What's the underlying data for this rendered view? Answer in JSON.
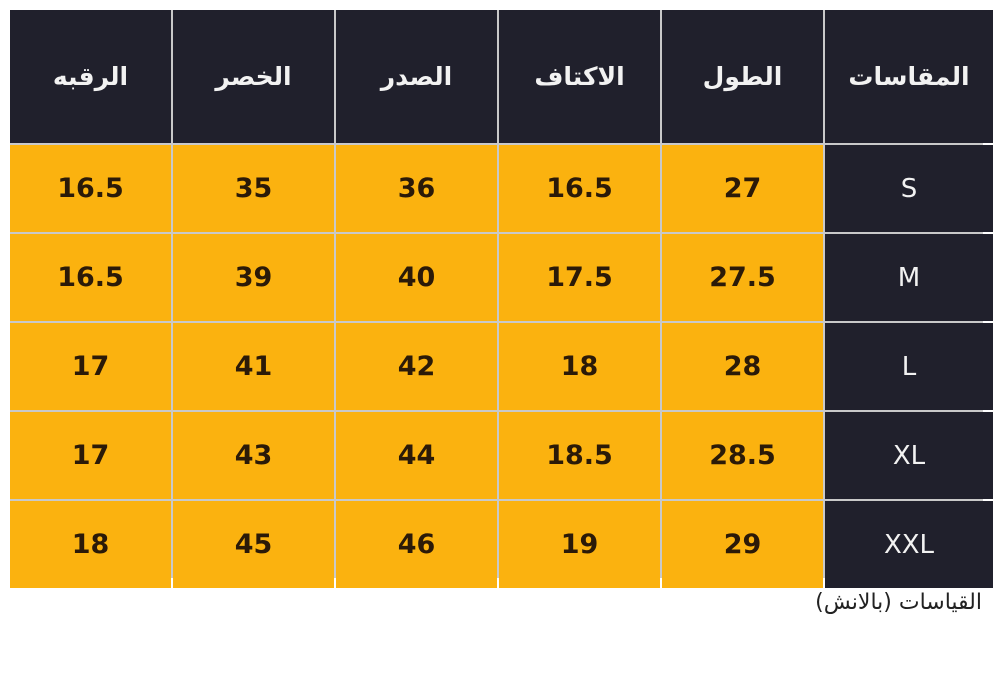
{
  "table": {
    "headers_rtl": [
      "المقاسات",
      "الطول",
      "الاكتاف",
      "الصدر",
      "الخصر",
      "الرقبه"
    ],
    "rows": [
      {
        "size": "S",
        "values": [
          "27",
          "16.5",
          "36",
          "35",
          "16.5"
        ]
      },
      {
        "size": "M",
        "values": [
          "27.5",
          "17.5",
          "40",
          "39",
          "16.5"
        ]
      },
      {
        "size": "L",
        "values": [
          "28",
          "18",
          "42",
          "41",
          "17"
        ]
      },
      {
        "size": "XL",
        "values": [
          "28.5",
          "18.5",
          "44",
          "43",
          "17"
        ]
      },
      {
        "size": "XXL",
        "values": [
          "29",
          "19",
          "46",
          "45",
          "18"
        ]
      }
    ]
  },
  "caption": "القياسات (بالانش)",
  "colors": {
    "header_bg": "#20202c",
    "value_bg": "#fbb20f",
    "value_text": "#2b1a08"
  }
}
